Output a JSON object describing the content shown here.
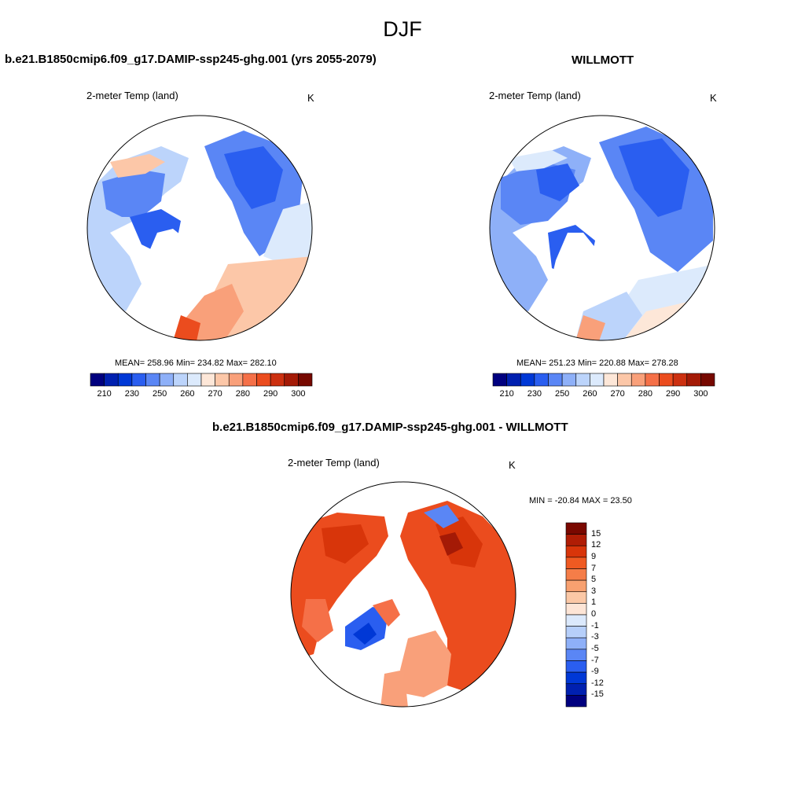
{
  "figure": {
    "title": "DJF"
  },
  "panels": {
    "model": {
      "title": "b.e21.B1850cmip6.f09_g17.DAMIP-ssp245-ghg.001 (yrs 2055-2079)",
      "variable": "2-meter Temp (land)",
      "units": "K",
      "stats": "MEAN= 258.96  Min= 234.82  Max= 282.10"
    },
    "obs": {
      "title": "WILLMOTT",
      "variable": "2-meter Temp (land)",
      "units": "K",
      "stats": "MEAN= 251.23  Min= 220.88  Max= 278.28"
    },
    "diff": {
      "title": "b.e21.B1850cmip6.f09_g17.DAMIP-ssp245-ghg.001 - WILLMOTT",
      "variable": "2-meter Temp (land)",
      "units": "K",
      "stats": "MIN = -20.84 MAX =  23.50"
    }
  },
  "colorbars": {
    "abs": {
      "colors": [
        "#00007f",
        "#0020b0",
        "#0038d6",
        "#2a5ef0",
        "#5a86f5",
        "#8eb0f8",
        "#bcd4fb",
        "#dceafc",
        "#fde7d8",
        "#fcc7a8",
        "#f9a07a",
        "#f57048",
        "#eb4c1e",
        "#cc3010",
        "#a41a06",
        "#760800"
      ],
      "tick_labels": [
        "210",
        "230",
        "250",
        "260",
        "270",
        "280",
        "290",
        "300"
      ]
    },
    "diff": {
      "colors": [
        "#7a0800",
        "#b01d05",
        "#d8350a",
        "#ef5a22",
        "#f57d48",
        "#f8a170",
        "#fbc8a6",
        "#fde5d6",
        "#dbe9fc",
        "#b6cffa",
        "#8eb0f8",
        "#5a86f5",
        "#2a5ef0",
        "#0038d6",
        "#0020b0",
        "#00007f"
      ],
      "tick_labels": [
        "15",
        "12",
        "9",
        "7",
        "5",
        "3",
        "1",
        "0",
        "-1",
        "-3",
        "-5",
        "-7",
        "-9",
        "-12",
        "-15"
      ]
    }
  },
  "chart_data": [
    {
      "type": "heatmap",
      "title": "b.e21.B1850cmip6.f09_g17.DAMIP-ssp245-ghg.001 (yrs 2055-2079)",
      "subtitle": "2-meter Temp (land)",
      "units": "K",
      "projection": "north polar stereographic",
      "mean": 258.96,
      "min": 234.82,
      "max": 282.1,
      "colorbar_levels": [
        205,
        210,
        220,
        230,
        240,
        250,
        255,
        260,
        265,
        270,
        275,
        280,
        285,
        290,
        295,
        300
      ],
      "colorbar_labels": [
        210,
        230,
        250,
        260,
        270,
        280,
        290,
        300
      ]
    },
    {
      "type": "heatmap",
      "title": "WILLMOTT",
      "subtitle": "2-meter Temp (land)",
      "units": "K",
      "projection": "north polar stereographic",
      "mean": 251.23,
      "min": 220.88,
      "max": 278.28,
      "colorbar_levels": [
        205,
        210,
        220,
        230,
        240,
        250,
        255,
        260,
        265,
        270,
        275,
        280,
        285,
        290,
        295,
        300
      ],
      "colorbar_labels": [
        210,
        230,
        250,
        260,
        270,
        280,
        290,
        300
      ]
    },
    {
      "type": "heatmap",
      "title": "b.e21.B1850cmip6.f09_g17.DAMIP-ssp245-ghg.001 - WILLMOTT",
      "subtitle": "2-meter Temp (land)",
      "units": "K",
      "projection": "north polar stereographic",
      "min": -20.84,
      "max": 23.5,
      "colorbar_levels": [
        15,
        12,
        9,
        7,
        5,
        3,
        1,
        0,
        -1,
        -3,
        -5,
        -7,
        -9,
        -12,
        -15
      ]
    }
  ]
}
